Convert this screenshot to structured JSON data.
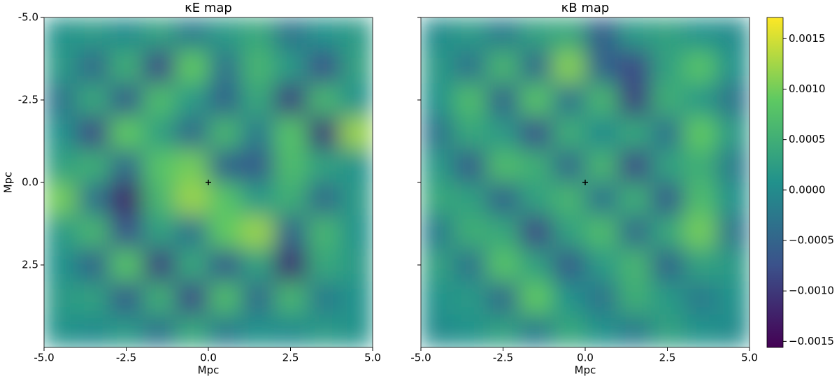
{
  "chart_data": [
    {
      "type": "heatmap",
      "title": "κE map",
      "xlabel": "Mpc",
      "ylabel": "Mpc",
      "xlim": [
        -5,
        5
      ],
      "ylim": [
        5,
        -5
      ],
      "xticks": [
        {
          "value": -5,
          "label": "-5.0"
        },
        {
          "value": -2.5,
          "label": "-2.5"
        },
        {
          "value": 0,
          "label": "0.0"
        },
        {
          "value": 2.5,
          "label": "2.5"
        },
        {
          "value": 5,
          "label": "5.0"
        }
      ],
      "yticks": [
        {
          "value": -5,
          "label": "-5.0"
        },
        {
          "value": -2.5,
          "label": "-2.5"
        },
        {
          "value": 0,
          "label": "0.0"
        },
        {
          "value": 2.5,
          "label": "2.5"
        }
      ],
      "center": [
        0,
        0
      ],
      "values": [
        [
          0.0001,
          0.0002,
          0.0,
          0.0003,
          -0.0002,
          0.0002,
          0.0004,
          -0.0003,
          0.0001,
          0.0002
        ],
        [
          0.0002,
          -0.0004,
          0.0005,
          -0.0008,
          0.0009,
          -0.0003,
          0.0006,
          0.0002,
          -0.0007,
          0.0003
        ],
        [
          -0.0003,
          0.0004,
          -0.0006,
          0.0007,
          0.0002,
          -0.0005,
          0.0004,
          -0.0009,
          0.0006,
          0.0001
        ],
        [
          0.0001,
          -0.0008,
          0.0009,
          0.0003,
          -0.0004,
          0.0006,
          -0.0002,
          0.0008,
          -0.001,
          0.0012
        ],
        [
          0.0003,
          0.0005,
          -0.0004,
          0.0008,
          0.001,
          -0.0005,
          -0.0006,
          0.0007,
          0.0003,
          0.0001
        ],
        [
          0.001,
          -0.0003,
          -0.0012,
          0.0006,
          0.0012,
          0.0008,
          0.0002,
          0.0005,
          -0.0004,
          0.0002
        ],
        [
          0.0002,
          0.0006,
          -0.0007,
          0.0003,
          -0.0003,
          0.0009,
          0.0012,
          -0.0005,
          0.0006,
          0.0001
        ],
        [
          0.0001,
          -0.0005,
          0.0008,
          -0.0009,
          0.0004,
          -0.0006,
          0.0003,
          -0.0011,
          0.0004,
          0.0002
        ],
        [
          0.0002,
          0.0003,
          -0.0006,
          0.0005,
          -0.0008,
          0.0007,
          -0.0004,
          0.0006,
          -0.0002,
          0.0001
        ],
        [
          0.0001,
          0.0,
          0.0002,
          -0.0003,
          0.0004,
          -0.0002,
          0.0001,
          0.0,
          0.0002,
          0.0001
        ]
      ]
    },
    {
      "type": "heatmap",
      "title": "κB map",
      "xlabel": "Mpc",
      "xlim": [
        -5,
        5
      ],
      "ylim": [
        5,
        -5
      ],
      "xticks": [
        {
          "value": -5,
          "label": "-5.0"
        },
        {
          "value": -2.5,
          "label": "-2.5"
        },
        {
          "value": 0,
          "label": "0.0"
        },
        {
          "value": 2.5,
          "label": "2.5"
        },
        {
          "value": 5,
          "label": "5.0"
        }
      ],
      "center": [
        0,
        0
      ],
      "colormap": [
        "#440154",
        "#3b528b",
        "#21918c",
        "#5ec962",
        "#fde725"
      ],
      "colorbar": {
        "lim": [
          -0.00156,
          0.00171
        ],
        "ticks": [
          {
            "value": -0.0015,
            "label": "−0.0015"
          },
          {
            "value": -0.001,
            "label": "−0.0010"
          },
          {
            "value": -0.0005,
            "label": "−0.0005"
          },
          {
            "value": 0,
            "label": "0.0000"
          },
          0.0005,
          {
            "value": 0.001,
            "label": "0.0010"
          },
          0.0015
        ]
      },
      "values": [
        [
          0.0,
          0.0002,
          -0.0002,
          0.0003,
          0.0004,
          -0.0006,
          0.0002,
          0.0003,
          0.0001,
          0.0
        ],
        [
          0.0002,
          -0.0003,
          0.0006,
          -0.0004,
          0.0011,
          -0.0005,
          -0.0008,
          0.0003,
          0.0008,
          0.0001
        ],
        [
          0.0001,
          0.0007,
          -0.0005,
          0.0008,
          -0.0003,
          0.0006,
          -0.0009,
          0.0005,
          0.0002,
          -0.0003
        ],
        [
          -0.0003,
          0.0004,
          0.0002,
          -0.0007,
          0.0005,
          0.0,
          0.0004,
          -0.0003,
          0.0009,
          0.0002
        ],
        [
          0.0002,
          -0.0006,
          0.0007,
          0.0005,
          -0.0004,
          0.0006,
          -0.0008,
          0.0003,
          0.0005,
          -0.0002
        ],
        [
          0.0004,
          0.0003,
          -0.0005,
          0.0003,
          0.0006,
          -0.0003,
          0.0005,
          -0.0006,
          0.0007,
          0.0001
        ],
        [
          -0.0002,
          0.0005,
          0.0004,
          -0.0008,
          0.0003,
          0.0007,
          -0.0004,
          0.0004,
          0.001,
          -0.0003
        ],
        [
          0.0003,
          -0.0003,
          0.0008,
          0.0003,
          -0.0006,
          0.0002,
          0.0006,
          -0.0005,
          0.0003,
          0.0002
        ],
        [
          0.0001,
          0.0002,
          -0.0004,
          0.0009,
          0.0001,
          -0.0003,
          0.0005,
          0.0002,
          -0.0002,
          0.0001
        ],
        [
          0.0,
          0.0001,
          0.0003,
          -0.0002,
          0.0004,
          0.0001,
          -0.0002,
          0.0003,
          0.0001,
          0.0
        ]
      ]
    }
  ]
}
